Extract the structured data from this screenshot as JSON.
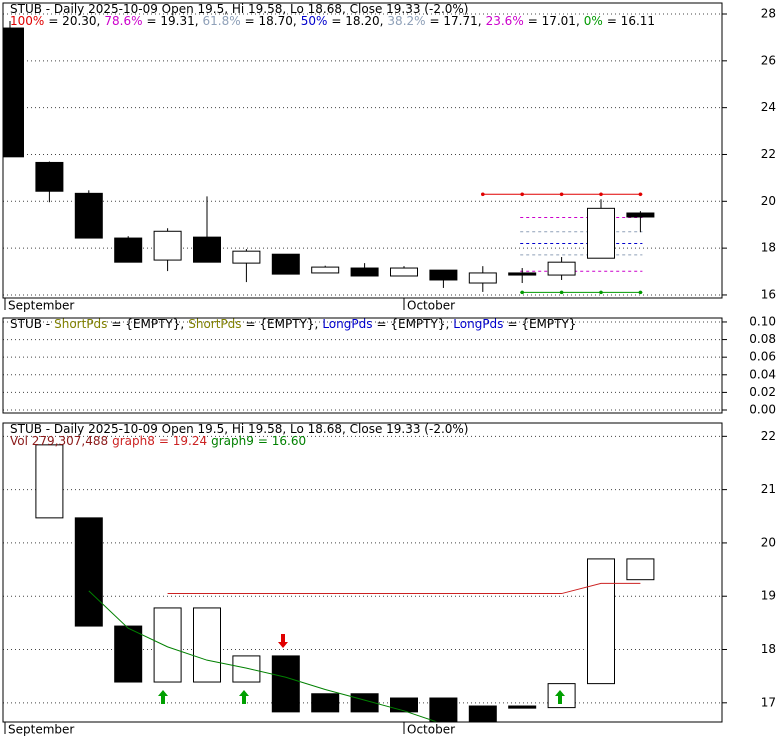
{
  "chart_data": [
    {
      "type": "candlestick",
      "title": "STUB - Daily 2025-10-09 Open 19.5, Hi 19.58, Lo 18.68, Close 19.33 (-2.0%)",
      "fib": [
        {
          "name": "100%",
          "label": "= 20.30,",
          "value": 20.3,
          "color": "#e00000"
        },
        {
          "name": "78.6%",
          "label": "= 19.31,",
          "value": 19.31,
          "color": "#cc00cc"
        },
        {
          "name": "61.8%",
          "label": "= 18.70,",
          "value": 18.7,
          "color": "#8fa0b8"
        },
        {
          "name": "50%",
          "label": "= 18.20,",
          "value": 18.2,
          "color": "#0000cc"
        },
        {
          "name": "38.2%",
          "label": "= 17.71,",
          "value": 17.71,
          "color": "#8fa0b8"
        },
        {
          "name": "23.6%",
          "label": "= 17.01,",
          "value": 17.01,
          "color": "#cc00cc"
        },
        {
          "name": "0%",
          "label": "= 16.11",
          "value": 16.11,
          "color": "#009900"
        }
      ],
      "categories": [
        "September",
        null,
        null,
        null,
        null,
        null,
        null,
        null,
        null,
        null,
        "October",
        null,
        null,
        null,
        null,
        null,
        null
      ],
      "open": [
        27.4,
        21.66,
        20.34,
        18.43,
        17.49,
        18.47,
        17.36,
        17.74,
        16.94,
        17.15,
        16.81,
        17.06,
        16.51,
        16.94,
        16.85,
        17.57,
        19.5
      ],
      "high": [
        27.7,
        21.7,
        20.47,
        18.51,
        18.85,
        20.21,
        17.96,
        17.74,
        17.25,
        17.36,
        17.23,
        17.06,
        17.23,
        17.15,
        17.62,
        20.09,
        19.58
      ],
      "low": [
        21.9,
        19.96,
        18.43,
        17.4,
        17.02,
        17.4,
        16.55,
        16.89,
        16.94,
        16.81,
        16.81,
        16.3,
        16.13,
        16.51,
        16.64,
        17.57,
        18.68
      ],
      "close": [
        21.9,
        20.43,
        18.43,
        17.4,
        18.72,
        17.4,
        17.87,
        16.89,
        17.19,
        16.81,
        17.15,
        16.64,
        16.94,
        16.85,
        17.4,
        19.7,
        19.33
      ],
      "ylim": [
        15.87,
        28.47
      ],
      "yticks": [
        16,
        18,
        20,
        22,
        24,
        26,
        28
      ],
      "grid": true
    },
    {
      "type": "line",
      "title": "STUB -",
      "series": [
        {
          "name": "ShortPds",
          "label": "= {EMPTY},",
          "color": "#808000",
          "values": []
        },
        {
          "name": "ShortPds",
          "label": "= {EMPTY},",
          "color": "#808000",
          "values": []
        },
        {
          "name": "LongPds",
          "label": "= {EMPTY},",
          "color": "#0000cc",
          "values": []
        },
        {
          "name": "LongPds",
          "label": "= {EMPTY}",
          "color": "#0000cc",
          "values": []
        }
      ],
      "ylim": [
        -0.0034,
        0.1045
      ],
      "yticks": [
        {
          "value": 0,
          "label": "0.00"
        },
        {
          "value": 0.02,
          "label": "0.02"
        },
        {
          "value": 0.04,
          "label": "0.04"
        },
        {
          "value": 0.06,
          "label": "0.06"
        },
        {
          "value": 0.08,
          "label": "0.08"
        },
        {
          "value": 0.1,
          "label": "0.10"
        }
      ],
      "grid": true
    },
    {
      "type": "box",
      "title": "STUB - Daily 2025-10-09 Open 19.5, Hi 19.58, Lo 18.68, Close 19.33 (-2.0%)",
      "volume_label": "Vol 279,307,488",
      "categories": [
        "September",
        null,
        null,
        null,
        null,
        null,
        null,
        null,
        null,
        null,
        "October",
        null,
        null,
        null,
        null,
        null,
        null
      ],
      "open": [
        null,
        20.47,
        20.47,
        18.44,
        17.39,
        17.39,
        17.39,
        17.88,
        17.17,
        17.17,
        17.09,
        17.09,
        16.94,
        16.94,
        16.91,
        17.36,
        19.31
      ],
      "close": [
        null,
        21.84,
        18.44,
        17.39,
        18.78,
        18.78,
        17.88,
        16.83,
        16.83,
        16.83,
        16.83,
        16.61,
        16.61,
        16.9,
        17.36,
        19.7,
        19.7
      ],
      "series": [
        {
          "name": "graph8",
          "label": "= 19.24",
          "color": "#cc2222",
          "values": [
            null,
            null,
            null,
            null,
            19.05,
            19.05,
            19.05,
            19.05,
            19.05,
            19.05,
            19.05,
            19.05,
            19.05,
            19.05,
            19.05,
            19.24,
            19.24
          ]
        },
        {
          "name": "graph9",
          "label": "= 16.60",
          "color": "#008000",
          "values": [
            null,
            null,
            19.1,
            18.4,
            18.05,
            17.8,
            17.65,
            17.48,
            17.25,
            17.05,
            16.85,
            16.6,
            16.6,
            16.6,
            16.6,
            16.6,
            16.6
          ]
        }
      ],
      "ylim": [
        16.64,
        22.25
      ],
      "yticks": [
        17,
        18,
        19,
        20,
        21,
        22
      ],
      "grid": true
    }
  ]
}
